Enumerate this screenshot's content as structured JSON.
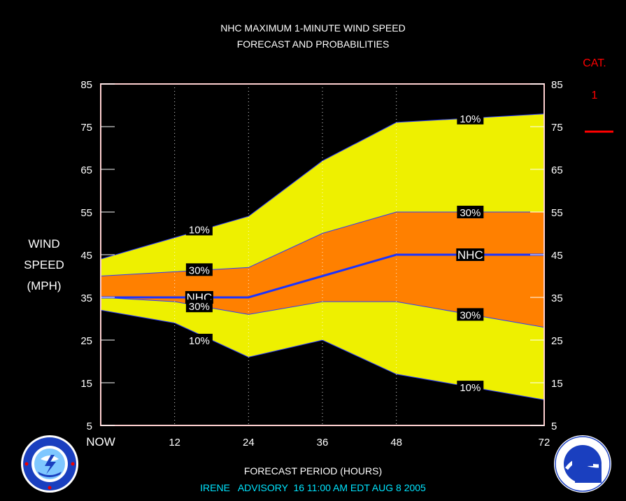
{
  "chart_data": {
    "type": "area",
    "title": "NHC MAXIMUM 1-MINUTE WIND SPEED",
    "subtitle": "FORECAST AND PROBABILITIES",
    "ylabel_lines": [
      "WIND",
      "SPEED",
      "(MPH)"
    ],
    "xlabel": "FORECAST PERIOD (HOURS)",
    "x": [
      0,
      12,
      24,
      36,
      48,
      72
    ],
    "x_tick_labels": [
      "NOW",
      "12",
      "24",
      "36",
      "48",
      "72"
    ],
    "ylim": [
      5,
      85
    ],
    "y_ticks": [
      5,
      15,
      25,
      35,
      45,
      55,
      65,
      75,
      85
    ],
    "y_tick_labels": [
      "5",
      "15",
      "25",
      "35",
      "45",
      "55",
      "65",
      "75",
      "85"
    ],
    "grid": "dotted vertical at 12, 24, 36, 48",
    "bands": [
      {
        "label": "10%",
        "color": "#eef000",
        "upper": {
          "x": [
            0,
            12,
            24,
            36,
            48,
            72
          ],
          "y": [
            44,
            49,
            54,
            67,
            76,
            78
          ]
        },
        "lower": {
          "x": [
            0,
            12,
            24,
            36,
            48,
            72
          ],
          "y": [
            32,
            29,
            21,
            25,
            17,
            11
          ]
        }
      },
      {
        "label": "30%",
        "color": "#ff8000",
        "upper": {
          "x": [
            0,
            12,
            24,
            36,
            48,
            72
          ],
          "y": [
            40,
            41,
            42,
            50,
            55,
            55
          ]
        },
        "lower": {
          "x": [
            0,
            12,
            24,
            36,
            48,
            72
          ],
          "y": [
            35,
            34,
            31,
            34,
            34,
            28
          ]
        }
      }
    ],
    "nhc_line": {
      "label": "NHC",
      "color": "#1a33ff",
      "x": [
        0,
        12,
        24,
        36,
        48,
        72
      ],
      "y": [
        35,
        35,
        35,
        40,
        45,
        45
      ]
    },
    "annotations": [
      {
        "text": "10%",
        "x": 16,
        "y": 51
      },
      {
        "text": "30%",
        "x": 16,
        "y": 41.5
      },
      {
        "text": "NHC",
        "x": 16,
        "y": 35
      },
      {
        "text": "30%",
        "x": 16,
        "y": 33
      },
      {
        "text": "10%",
        "x": 16,
        "y": 25
      },
      {
        "text": "10%",
        "x": 60,
        "y": 77
      },
      {
        "text": "30%",
        "x": 60,
        "y": 55
      },
      {
        "text": "NHC",
        "x": 60,
        "y": 45
      },
      {
        "text": "30%",
        "x": 60,
        "y": 31
      },
      {
        "text": "10%",
        "x": 60,
        "y": 14
      }
    ],
    "category": {
      "label": "CAT.",
      "value": "1",
      "threshold": 74,
      "color": "#ff0000"
    },
    "footer": "IRENE   ADVISORY  16 11:00 AM EDT AUG 8 2005",
    "footer_color": "#00e5ff"
  }
}
